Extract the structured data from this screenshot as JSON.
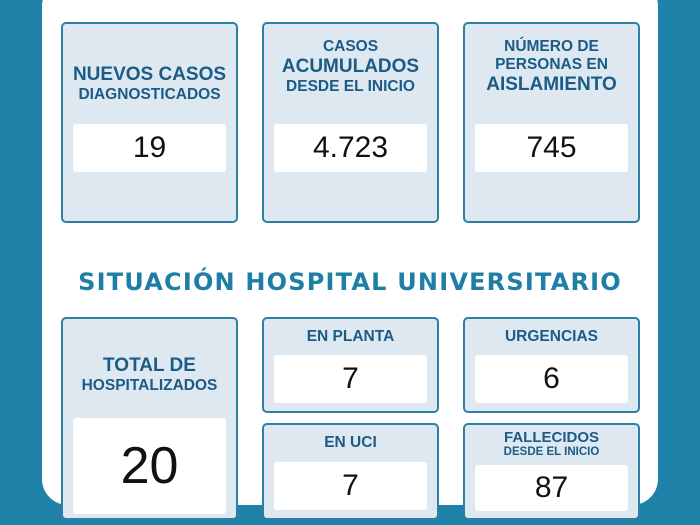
{
  "top_cards": [
    {
      "lines": [
        "NUEVOS CASOS",
        "DIAGNOSTICADOS"
      ],
      "value": "19"
    },
    {
      "lines": [
        "CASOS",
        "ACUMULADOS",
        "DESDE EL INICIO"
      ],
      "value": "4.723"
    },
    {
      "lines": [
        "NÚMERO DE",
        "PERSONAS EN",
        "AISLAMIENTO"
      ],
      "value": "745"
    }
  ],
  "section_title": "SITUACIÓN HOSPITAL UNIVERSITARIO",
  "hospital": {
    "total": {
      "lines": [
        "TOTAL DE",
        "HOSPITALIZADOS"
      ],
      "value": "20"
    },
    "en_planta": {
      "label": "EN PLANTA",
      "value": "7"
    },
    "urgencias": {
      "label": "URGENCIAS",
      "value": "6"
    },
    "en_uci": {
      "label": "EN UCI",
      "value": "7"
    },
    "fallecidos": {
      "lines": [
        "FALLECIDOS",
        "DESDE EL INICIO"
      ],
      "value": "87"
    }
  },
  "colors": {
    "background": "#1f82a8",
    "card_fill": "#dde8f0",
    "card_border": "#2e7fa6",
    "label_text": "#1b5b86",
    "title_text": "#1d7ea6"
  }
}
